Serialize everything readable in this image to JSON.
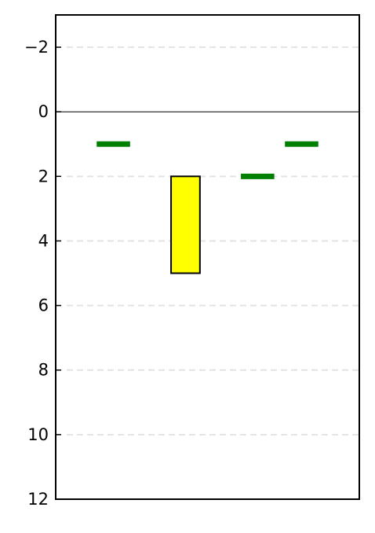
{
  "chart_data": {
    "type": "bar",
    "title": "",
    "xlabel": "",
    "ylabel": "",
    "ylim": [
      12,
      -3
    ],
    "yticks": [
      -2,
      0,
      2,
      4,
      6,
      8,
      10,
      12
    ],
    "ytick_labels": [
      "−2",
      "0",
      "2",
      "4",
      "6",
      "8",
      "10",
      "12"
    ],
    "y_inverted": true,
    "grid": "horizontal dashed",
    "zero_line": 0,
    "xlim": [
      0,
      1
    ],
    "bars": [
      {
        "x_start": 0.38,
        "x_end": 0.475,
        "y_start": 2,
        "y_end": 5,
        "color": "#ffff00",
        "edge": "#000000"
      }
    ],
    "markers": [
      {
        "x_start": 0.135,
        "x_end": 0.245,
        "y": 1,
        "color": "#008000"
      },
      {
        "x_start": 0.61,
        "x_end": 0.72,
        "y": 2,
        "color": "#008000"
      },
      {
        "x_start": 0.755,
        "x_end": 0.865,
        "y": 1,
        "color": "#008000"
      }
    ]
  }
}
